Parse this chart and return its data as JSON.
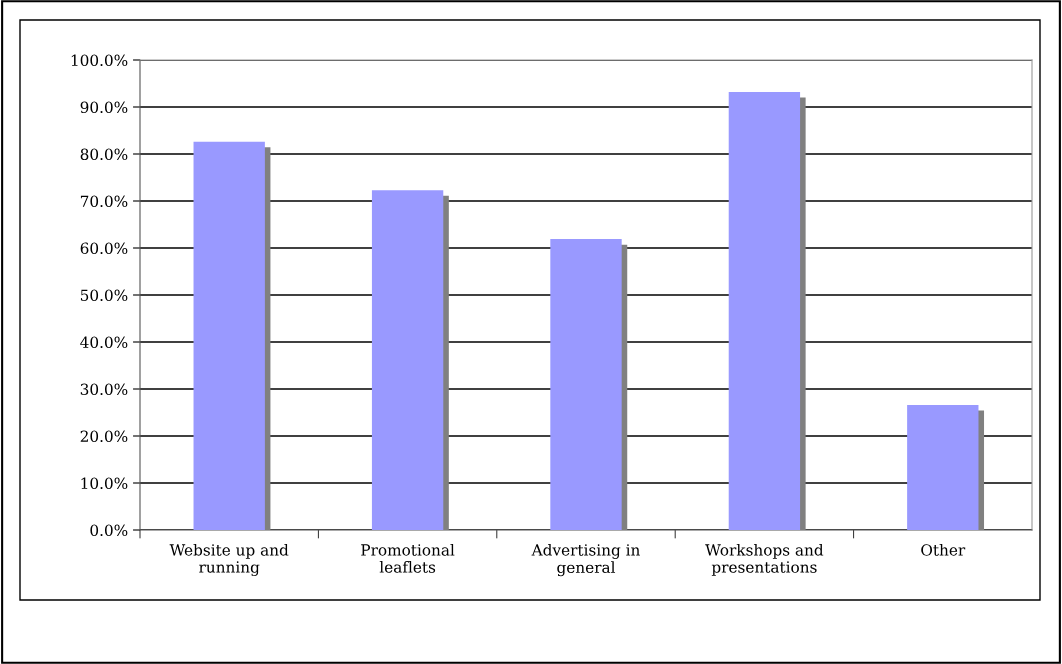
{
  "chart_data": {
    "type": "bar",
    "categories": [
      "Website up and\nrunning",
      "Promotional\nleaflets",
      "Advertising in\ngeneral",
      "Workshops and\npresentations",
      "Other"
    ],
    "values": [
      82.6,
      72.3,
      61.9,
      93.2,
      26.6
    ],
    "color": "#9999ff",
    "ylim": [
      0,
      100
    ],
    "yticks": [
      {
        "value": 0,
        "label": "0.0%"
      },
      {
        "value": 10,
        "label": "10.0%"
      },
      {
        "value": 20,
        "label": "20.0%"
      },
      {
        "value": 30,
        "label": "30.0%"
      },
      {
        "value": 40,
        "label": "40.0%"
      },
      {
        "value": 50,
        "label": "50.0%"
      },
      {
        "value": 60,
        "label": "60.0%"
      },
      {
        "value": 70,
        "label": "70.0%"
      },
      {
        "value": 80,
        "label": "80.0%"
      },
      {
        "value": 90,
        "label": "90.0%"
      },
      {
        "value": 100,
        "label": "100.0%"
      }
    ],
    "grid": "y",
    "legend": false
  }
}
